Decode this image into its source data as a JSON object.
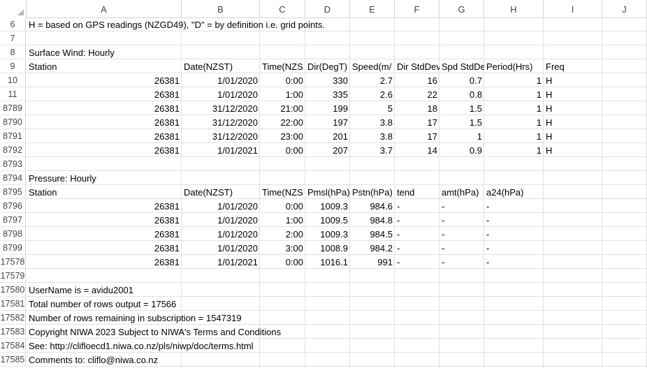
{
  "columns": [
    "A",
    "B",
    "C",
    "D",
    "E",
    "F",
    "G",
    "H",
    "I",
    "J"
  ],
  "rows": [
    {
      "num": "6",
      "text": "H = based on GPS readings (NZGD49), \"D\" = by definition i.e. grid points."
    },
    {
      "num": "7"
    },
    {
      "num": "8",
      "text": "Surface Wind: Hourly"
    },
    {
      "num": "9",
      "cells": [
        "Station",
        "Date(NZST)",
        "Time(NZS",
        "Dir(DegT)",
        "Speed(m/",
        "Dir StdDev",
        "Spd StdDe",
        "Period(Hrs)",
        "Freq"
      ]
    },
    {
      "num": "10",
      "cells": [
        "26381",
        "1/01/2020",
        "0:00",
        "330",
        "2.7",
        "16",
        "0.7",
        "1",
        "H"
      ]
    },
    {
      "num": "11",
      "cells": [
        "26381",
        "1/01/2020",
        "1:00",
        "335",
        "2.6",
        "22",
        "0.8",
        "1",
        "H"
      ]
    },
    {
      "num": "8789",
      "cells": [
        "26381",
        "31/12/2020",
        "21:00",
        "199",
        "5",
        "18",
        "1.5",
        "1",
        "H"
      ]
    },
    {
      "num": "8790",
      "cells": [
        "26381",
        "31/12/2020",
        "22:00",
        "197",
        "3.8",
        "17",
        "1.5",
        "1",
        "H"
      ]
    },
    {
      "num": "8791",
      "cells": [
        "26381",
        "31/12/2020",
        "23:00",
        "201",
        "3.8",
        "17",
        "1",
        "1",
        "H"
      ]
    },
    {
      "num": "8792",
      "cells": [
        "26381",
        "1/01/2021",
        "0:00",
        "207",
        "3.7",
        "14",
        "0.9",
        "1",
        "H"
      ]
    },
    {
      "num": "8793"
    },
    {
      "num": "8794",
      "text": "Pressure: Hourly"
    },
    {
      "num": "8795",
      "cells": [
        "Station",
        "Date(NZST)",
        "Time(NZS",
        "Pmsl(hPa)",
        "Pstn(hPa)",
        "tend",
        "amt(hPa)",
        "a24(hPa)",
        ""
      ]
    },
    {
      "num": "8796",
      "cells": [
        "26381",
        "1/01/2020",
        "0:00",
        "1009.3",
        "984.6",
        "-",
        "-",
        "-",
        ""
      ]
    },
    {
      "num": "8797",
      "cells": [
        "26381",
        "1/01/2020",
        "1:00",
        "1009.5",
        "984.8",
        "-",
        "-",
        "-",
        ""
      ]
    },
    {
      "num": "8798",
      "cells": [
        "26381",
        "1/01/2020",
        "2:00",
        "1009.3",
        "984.5",
        "-",
        "-",
        "-",
        ""
      ]
    },
    {
      "num": "8799",
      "cells": [
        "26381",
        "1/01/2020",
        "3:00",
        "1008.9",
        "984.2",
        "-",
        "-",
        "-",
        ""
      ]
    },
    {
      "num": "17578",
      "cells": [
        "26381",
        "1/01/2021",
        "0:00",
        "1016.1",
        "991",
        "-",
        "-",
        "-",
        ""
      ]
    },
    {
      "num": "17579"
    },
    {
      "num": "17580",
      "text": "UserName is = avidu2001"
    },
    {
      "num": "17581",
      "text": "Total number of rows output = 17566"
    },
    {
      "num": "17582",
      "text": "Number of rows remaining in subscription = 1547319"
    },
    {
      "num": "17583",
      "text": "Copyright NIWA 2023 Subject to NIWA's Terms and Conditions"
    },
    {
      "num": "17584",
      "text": "See: http://clifloecd1.niwa.co.nz/pls/niwp/doc/terms.html"
    },
    {
      "num": "17585",
      "text": "Comments to: cliflo@niwa.co.nz"
    }
  ]
}
